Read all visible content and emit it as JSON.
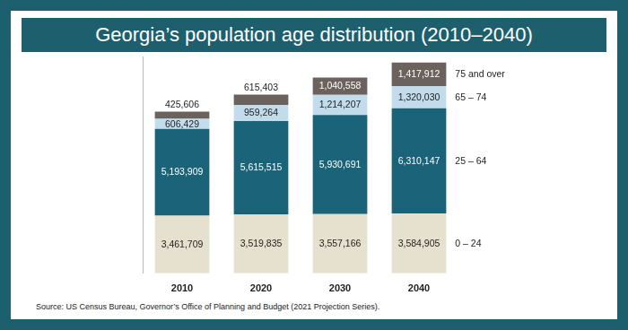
{
  "chart_data": {
    "type": "bar",
    "title": "Georgia’s population age distribution (2010–2040)",
    "source": "Source: US Census Bureau, Governor’s Office of Planning and Budget (2021 Projection Series).",
    "categories": [
      "2010",
      "2020",
      "2030",
      "2040"
    ],
    "series": [
      {
        "name": "0 – 24",
        "color": "#e6e0cf",
        "values": [
          3461709,
          3519835,
          3557166,
          3584905
        ],
        "value_labels": [
          "3,461,709",
          "3,519,835",
          "3,557,166",
          "3,584,905"
        ]
      },
      {
        "name": "25 – 64",
        "color": "#1b6379",
        "values": [
          5193909,
          5615515,
          5930691,
          6310147
        ],
        "value_labels": [
          "5,193,909",
          "5,615,515",
          "5,930,691",
          "6,310,147"
        ]
      },
      {
        "name": "65 – 74",
        "color": "#c3dcec",
        "values": [
          606429,
          959264,
          1214207,
          1320030
        ],
        "value_labels": [
          "606,429",
          "959,264",
          "1,214,207",
          "1,320,030"
        ]
      },
      {
        "name": "75 and over",
        "color": "#6b625d",
        "values": [
          425606,
          615403,
          1040558,
          1417912
        ],
        "value_labels": [
          "425,606",
          "615,403",
          "1,040,558",
          "1,417,912"
        ]
      }
    ],
    "stacked": true,
    "data_labels": true,
    "legend": "right",
    "grid": false,
    "tick_labels": "x",
    "ylim": [
      0,
      13000000
    ],
    "yticks": []
  }
}
